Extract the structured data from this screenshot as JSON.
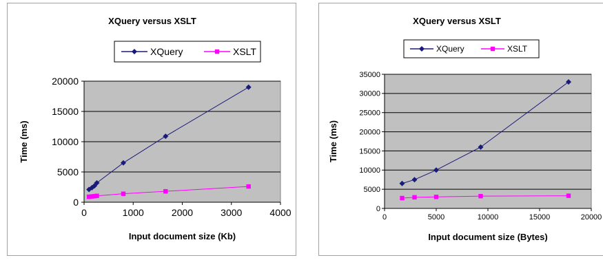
{
  "chart_data": [
    {
      "type": "line",
      "title": "XQuery versus XSLT",
      "xlabel": "Input document size (Kb)",
      "ylabel": "Time (ms)",
      "xlim": [
        0,
        4000
      ],
      "ylim": [
        0,
        20000
      ],
      "xticks": [
        0,
        1000,
        2000,
        3000,
        4000
      ],
      "yticks": [
        0,
        5000,
        10000,
        15000,
        20000
      ],
      "grid": "horizontal",
      "legend": "top",
      "series": [
        {
          "name": "XQuery",
          "color": "#1a1a7a",
          "marker": "diamond",
          "x": [
            100,
            160,
            210,
            260,
            800,
            1660,
            3350
          ],
          "y": [
            2100,
            2400,
            2700,
            3200,
            6500,
            10900,
            19000
          ]
        },
        {
          "name": "XSLT",
          "color": "#ff00ff",
          "marker": "square",
          "x": [
            100,
            160,
            210,
            260,
            800,
            1660,
            3350
          ],
          "y": [
            900,
            950,
            1000,
            1050,
            1400,
            1800,
            2600
          ]
        }
      ]
    },
    {
      "type": "line",
      "title": "XQuery versus XSLT",
      "xlabel": "Input document size (Bytes)",
      "ylabel": "Time (ms)",
      "xlim": [
        0,
        20000
      ],
      "ylim": [
        0,
        35000
      ],
      "xticks": [
        0,
        5000,
        10000,
        15000,
        20000
      ],
      "yticks": [
        0,
        5000,
        10000,
        15000,
        20000,
        25000,
        30000,
        35000
      ],
      "grid": "horizontal",
      "legend": "top",
      "series": [
        {
          "name": "XQuery",
          "color": "#1a1a7a",
          "marker": "diamond",
          "x": [
            1700,
            2900,
            5000,
            9300,
            17800
          ],
          "y": [
            6500,
            7500,
            10000,
            16000,
            33000
          ]
        },
        {
          "name": "XSLT",
          "color": "#ff00ff",
          "marker": "square",
          "x": [
            1700,
            2900,
            5000,
            9300,
            17800
          ],
          "y": [
            2700,
            2900,
            3000,
            3200,
            3300
          ]
        }
      ]
    }
  ]
}
